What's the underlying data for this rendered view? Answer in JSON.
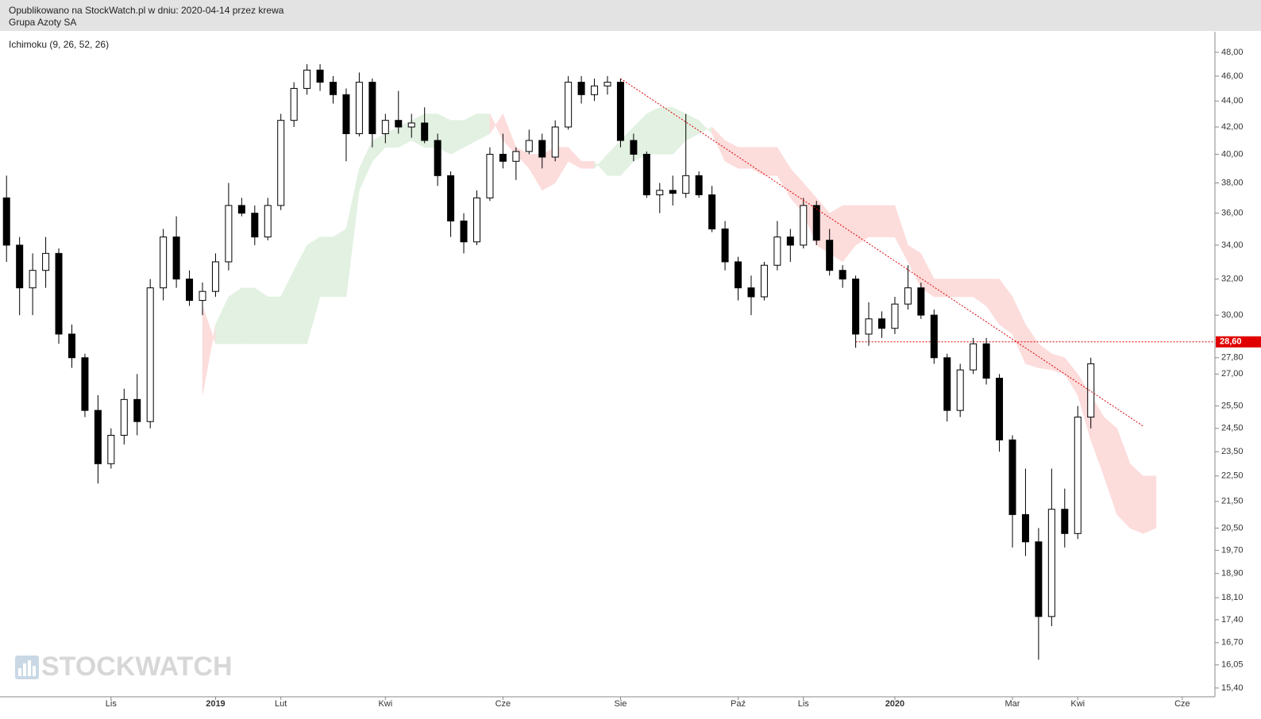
{
  "header": {
    "published": "Opublikowano na StockWatch.pl w dniu: 2020-04-14 przez krewa",
    "instrument": "Grupa Azoty SA"
  },
  "watermark": "STOCKWATCH",
  "chart_data": {
    "type": "candlestick",
    "indicator": "Ichimoku (9, 26, 52, 26)",
    "log_scale": true,
    "ylim": [
      15.16,
      49.8
    ],
    "yticks": [
      {
        "value": 48,
        "label": "48,00"
      },
      {
        "value": 46,
        "label": "46,00"
      },
      {
        "value": 44,
        "label": "44,00"
      },
      {
        "value": 42,
        "label": "42,00"
      },
      {
        "value": 40,
        "label": "40,00"
      },
      {
        "value": 38,
        "label": "38,00"
      },
      {
        "value": 36,
        "label": "36,00"
      },
      {
        "value": 34,
        "label": "34,00"
      },
      {
        "value": 32,
        "label": "32,00"
      },
      {
        "value": 30,
        "label": "30,00"
      },
      {
        "value": 27.8,
        "label": "27,80"
      },
      {
        "value": 27,
        "label": "27,00"
      },
      {
        "value": 25.5,
        "label": "25,50"
      },
      {
        "value": 24.5,
        "label": "24,50"
      },
      {
        "value": 23.5,
        "label": "23,50"
      },
      {
        "value": 22.5,
        "label": "22,50"
      },
      {
        "value": 21.5,
        "label": "21,50"
      },
      {
        "value": 20.5,
        "label": "20,50"
      },
      {
        "value": 19.7,
        "label": "19,70"
      },
      {
        "value": 18.9,
        "label": "18,90"
      },
      {
        "value": 18.1,
        "label": "18,10"
      },
      {
        "value": 17.4,
        "label": "17,40"
      },
      {
        "value": 16.7,
        "label": "16,70"
      },
      {
        "value": 16.05,
        "label": "16,05"
      },
      {
        "value": 15.4,
        "label": "15,40"
      }
    ],
    "categories": [
      null,
      null,
      null,
      null,
      null,
      null,
      null,
      null,
      "Lis",
      null,
      null,
      null,
      null,
      null,
      null,
      null,
      "2019",
      null,
      null,
      null,
      null,
      "Lut",
      null,
      null,
      null,
      null,
      null,
      null,
      null,
      "Kwi",
      null,
      null,
      null,
      null,
      null,
      null,
      null,
      null,
      "Cze",
      null,
      null,
      null,
      null,
      null,
      null,
      null,
      null,
      "Sie",
      null,
      null,
      null,
      null,
      null,
      null,
      null,
      null,
      "Paź",
      null,
      null,
      null,
      null,
      "Lis",
      null,
      null,
      null,
      null,
      null,
      null,
      "2020",
      null,
      null,
      null,
      null,
      null,
      null,
      null,
      null,
      "Mar",
      null,
      null,
      null,
      null,
      "Kwi",
      null,
      null,
      null,
      null,
      null,
      null,
      null,
      "Cze",
      null,
      null
    ],
    "open": [
      37,
      34,
      31.5,
      32.5,
      33.5,
      29,
      27.8,
      25.3,
      23,
      24.2,
      25.8,
      24.8,
      31.5,
      34.5,
      32,
      30.8,
      31.3,
      33,
      36.5,
      36,
      34.5,
      36.5,
      42.5,
      45,
      46.5,
      45.5,
      44.5,
      41.5,
      45.5,
      41.5,
      42.5,
      42,
      42.3,
      41,
      38.5,
      35.5,
      34.2,
      37,
      40,
      39.5,
      40.2,
      41,
      39.8,
      42,
      45.5,
      44.5,
      45.2,
      45.5,
      41,
      40,
      37.2,
      37.5,
      37.3,
      38.5,
      37.2,
      35,
      33,
      31.5,
      31,
      32.8,
      34.5,
      34,
      36.5,
      34.3,
      32.5,
      32,
      29,
      29.8,
      29.3,
      30.6,
      31.5,
      30,
      27.8,
      25.3,
      27.2,
      28.5,
      26.8,
      24,
      21,
      20,
      17.5,
      21.2,
      20.3,
      25,
      null,
      null,
      null,
      null,
      null,
      null,
      null,
      null,
      null
    ],
    "high": [
      38.5,
      34.5,
      33.5,
      34.5,
      33.8,
      29.5,
      28,
      26,
      24.5,
      26.3,
      27,
      32,
      35,
      35.8,
      32.5,
      31.8,
      33.5,
      38,
      37,
      36.5,
      37,
      43,
      45.5,
      47,
      47,
      46,
      45,
      46.3,
      45.8,
      43,
      44.8,
      43,
      43.5,
      41.5,
      38.8,
      36,
      37.5,
      40.5,
      41.5,
      40.5,
      41.8,
      41.5,
      42.5,
      46,
      46,
      45.8,
      46,
      45.8,
      41.5,
      40.2,
      38,
      38.5,
      43,
      38.8,
      37.8,
      35.5,
      33.3,
      32.2,
      33,
      35.5,
      35,
      37,
      36.8,
      35,
      32.8,
      32.2,
      30.7,
      30.2,
      31,
      32.8,
      31.8,
      30.3,
      28,
      27.5,
      28.8,
      28.8,
      27,
      24.2,
      22.8,
      20.5,
      22.8,
      22,
      25.5,
      27.8,
      null,
      null,
      null,
      null,
      null,
      null,
      null,
      null,
      null
    ],
    "low": [
      33,
      30,
      30,
      31.5,
      28.5,
      27.3,
      25,
      22.2,
      22.8,
      23.8,
      24.2,
      24.5,
      30.8,
      31.5,
      30.5,
      30,
      31,
      32.5,
      35.8,
      34,
      34.3,
      36.2,
      42,
      44.5,
      44.8,
      43.8,
      39.5,
      41.3,
      40.5,
      40.8,
      41.5,
      41.2,
      40.8,
      37.8,
      34.5,
      33.5,
      34,
      36.8,
      39,
      38.2,
      40,
      39,
      39.5,
      41.8,
      43.8,
      44,
      44.5,
      40.5,
      39.5,
      37,
      36,
      36.5,
      37,
      37,
      34.8,
      32.5,
      30.8,
      30,
      30.8,
      32.5,
      33,
      33.8,
      34,
      32.2,
      31.5,
      28.3,
      28.4,
      28.8,
      29,
      30.3,
      29.8,
      27.5,
      24.8,
      25,
      27,
      26.5,
      23.5,
      19.8,
      19.5,
      16.2,
      17.2,
      19.8,
      20.1,
      24.5,
      null,
      null,
      null,
      null,
      null,
      null,
      null,
      null,
      null
    ],
    "close": [
      34,
      31.5,
      32.5,
      33.5,
      29,
      27.8,
      25.3,
      23,
      24.2,
      25.8,
      24.8,
      31.5,
      34.5,
      32,
      30.8,
      31.3,
      33,
      36.5,
      36,
      34.5,
      36.5,
      42.5,
      45,
      46.5,
      45.5,
      44.5,
      41.5,
      45.5,
      41.5,
      42.5,
      42,
      42.3,
      41,
      38.5,
      35.5,
      34.2,
      37,
      40,
      39.5,
      40.2,
      41,
      39.8,
      42,
      45.5,
      44.5,
      45.2,
      45.5,
      41,
      40,
      37.2,
      37.5,
      37.3,
      38.5,
      37.2,
      35,
      33,
      31.5,
      31,
      32.8,
      34.5,
      34,
      36.5,
      34.3,
      32.5,
      32,
      29,
      29.8,
      29.3,
      30.6,
      31.5,
      30,
      27.8,
      25.3,
      27.2,
      28.5,
      26.8,
      24,
      21,
      20,
      17.5,
      21.2,
      20.3,
      25,
      27.5,
      null,
      null,
      null,
      null,
      null,
      null,
      null,
      null,
      null
    ],
    "cloud": {
      "up_color": "#e2f1e2",
      "down_color": "#fddcdc",
      "span_a": [
        null,
        null,
        null,
        null,
        null,
        null,
        null,
        null,
        null,
        null,
        null,
        null,
        null,
        null,
        null,
        26,
        29.5,
        31,
        31.5,
        31.5,
        31,
        31,
        32.5,
        34,
        34.5,
        34.5,
        35,
        39,
        41,
        41.5,
        42,
        42.5,
        43,
        43,
        42.5,
        42.5,
        43,
        43,
        41,
        40,
        39,
        37.5,
        38,
        39.5,
        39,
        39,
        40,
        41,
        42,
        43,
        43.5,
        43.5,
        43,
        42.5,
        41.5,
        39.5,
        39,
        39,
        38.5,
        38.5,
        37,
        36,
        34,
        33.5,
        33,
        34,
        34.5,
        34.5,
        34.5,
        33,
        31.5,
        31,
        31,
        31,
        31,
        30.5,
        29.5,
        29,
        27.5,
        27.3,
        27.2,
        27,
        26,
        24,
        22.5,
        21,
        20.5,
        20.3,
        20.5,
        null,
        null,
        null,
        null
      ],
      "span_b": [
        null,
        null,
        null,
        null,
        null,
        null,
        null,
        null,
        null,
        null,
        null,
        null,
        null,
        null,
        null,
        30.5,
        28.5,
        28.5,
        28.5,
        28.5,
        28.5,
        28.5,
        28.5,
        28.5,
        31,
        31,
        31,
        37.5,
        39.5,
        40.5,
        40.5,
        41,
        40.5,
        40.5,
        40,
        40.5,
        41,
        41.5,
        43,
        40.5,
        40,
        40,
        40.5,
        40.5,
        39.5,
        39.5,
        38.5,
        38.5,
        39.5,
        40,
        40,
        40,
        41,
        41.5,
        42,
        41,
        40.5,
        40.5,
        40.5,
        40.5,
        39,
        38,
        37,
        36,
        36.5,
        36.5,
        36.5,
        36.5,
        36.5,
        34,
        33.5,
        32,
        32,
        32,
        32,
        32,
        32,
        31,
        29.5,
        28.5,
        28,
        27.8,
        27,
        26,
        25,
        24.5,
        23,
        22.5,
        22.5,
        null,
        null,
        null,
        null
      ]
    },
    "trendline": [
      {
        "category": 47,
        "value": 45.8
      },
      {
        "category": 87,
        "value": 24.6
      }
    ],
    "level": {
      "value": 28.6,
      "label": "28,60",
      "category": 65,
      "color": "#e00000"
    }
  }
}
